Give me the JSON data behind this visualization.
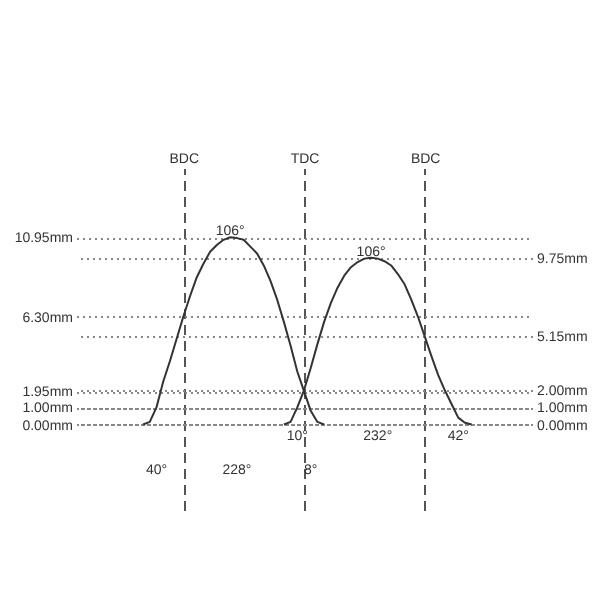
{
  "chart_data": {
    "type": "line",
    "ylim": [
      -5,
      15
    ],
    "y2lim": [
      -5,
      15
    ],
    "categories": [
      null,
      null,
      null,
      null,
      null,
      null,
      null,
      null,
      null,
      null,
      null,
      null,
      null,
      null,
      null,
      null,
      "BDC",
      null,
      null,
      null,
      null,
      null,
      null,
      null,
      null,
      null,
      null,
      null,
      null,
      null,
      null,
      null,
      null,
      null,
      "TDC",
      null,
      null,
      null,
      null,
      null,
      null,
      null,
      null,
      null,
      null,
      null,
      null,
      null,
      null,
      null,
      null,
      null,
      "BDC",
      null,
      null,
      null,
      null,
      null,
      null,
      null,
      null,
      null,
      null,
      null,
      null,
      null,
      null,
      null,
      null
    ],
    "yticks": [
      {
        "value": 0,
        "label": "0.00mm"
      },
      {
        "value": 1,
        "label": "1.00mm"
      },
      {
        "value": 1.95,
        "label": "1.95mm"
      },
      {
        "value": 6.3,
        "label": "6.30mm"
      },
      {
        "value": 10.95,
        "label": "10.95mm"
      }
    ],
    "y2ticks": [
      {
        "value": 0,
        "label": "0.00mm"
      },
      {
        "value": 1,
        "label": "1.00mm"
      },
      {
        "value": 2,
        "label": "2.00mm"
      },
      {
        "value": 5.15,
        "label": "5.15mm"
      },
      {
        "value": 9.75,
        "label": "9.75mm"
      }
    ],
    "grid": true,
    "marker": "none",
    "line_style": "solid",
    "series": [
      {
        "color": "#333333",
        "values": [
          null,
          null,
          null,
          null,
          null,
          null,
          null,
          null,
          null,
          null,
          0,
          0.15,
          1.0,
          2.5,
          3.7,
          5.0,
          6.3,
          7.5,
          8.6,
          9.4,
          10.1,
          10.5,
          10.8,
          10.95,
          10.9,
          10.8,
          10.4,
          10.0,
          9.3,
          8.4,
          7.3,
          6.0,
          4.6,
          3.1,
          1.95,
          0.8,
          0.15,
          0,
          null,
          null,
          null,
          null,
          null,
          null,
          null,
          null,
          null,
          null,
          null,
          null,
          null,
          null,
          null,
          null,
          null,
          null,
          null,
          null,
          null,
          null,
          null,
          null,
          null,
          null,
          null,
          null,
          null,
          null,
          null
        ]
      },
      {
        "color": "#333333",
        "axis": "y2",
        "values": [
          null,
          null,
          null,
          null,
          null,
          null,
          null,
          null,
          null,
          null,
          null,
          null,
          null,
          null,
          null,
          null,
          null,
          null,
          null,
          null,
          null,
          null,
          null,
          null,
          null,
          null,
          null,
          null,
          null,
          null,
          null,
          0,
          0.15,
          1.0,
          2.0,
          3.3,
          4.7,
          6.0,
          7.1,
          8.0,
          8.7,
          9.2,
          9.5,
          9.7,
          9.75,
          9.7,
          9.55,
          9.3,
          8.8,
          8.2,
          7.3,
          6.3,
          5.15,
          4.0,
          2.9,
          2.0,
          1.2,
          0.4,
          0.1,
          0,
          null,
          null,
          null,
          null,
          null,
          null,
          null,
          null,
          null
        ]
      }
    ],
    "annotations": [
      {
        "text": "106°",
        "y": 10.95
      },
      {
        "text": "106°",
        "y": 9.75
      },
      "40°",
      "228°",
      "8°",
      "10°",
      "232°",
      "42°"
    ]
  }
}
